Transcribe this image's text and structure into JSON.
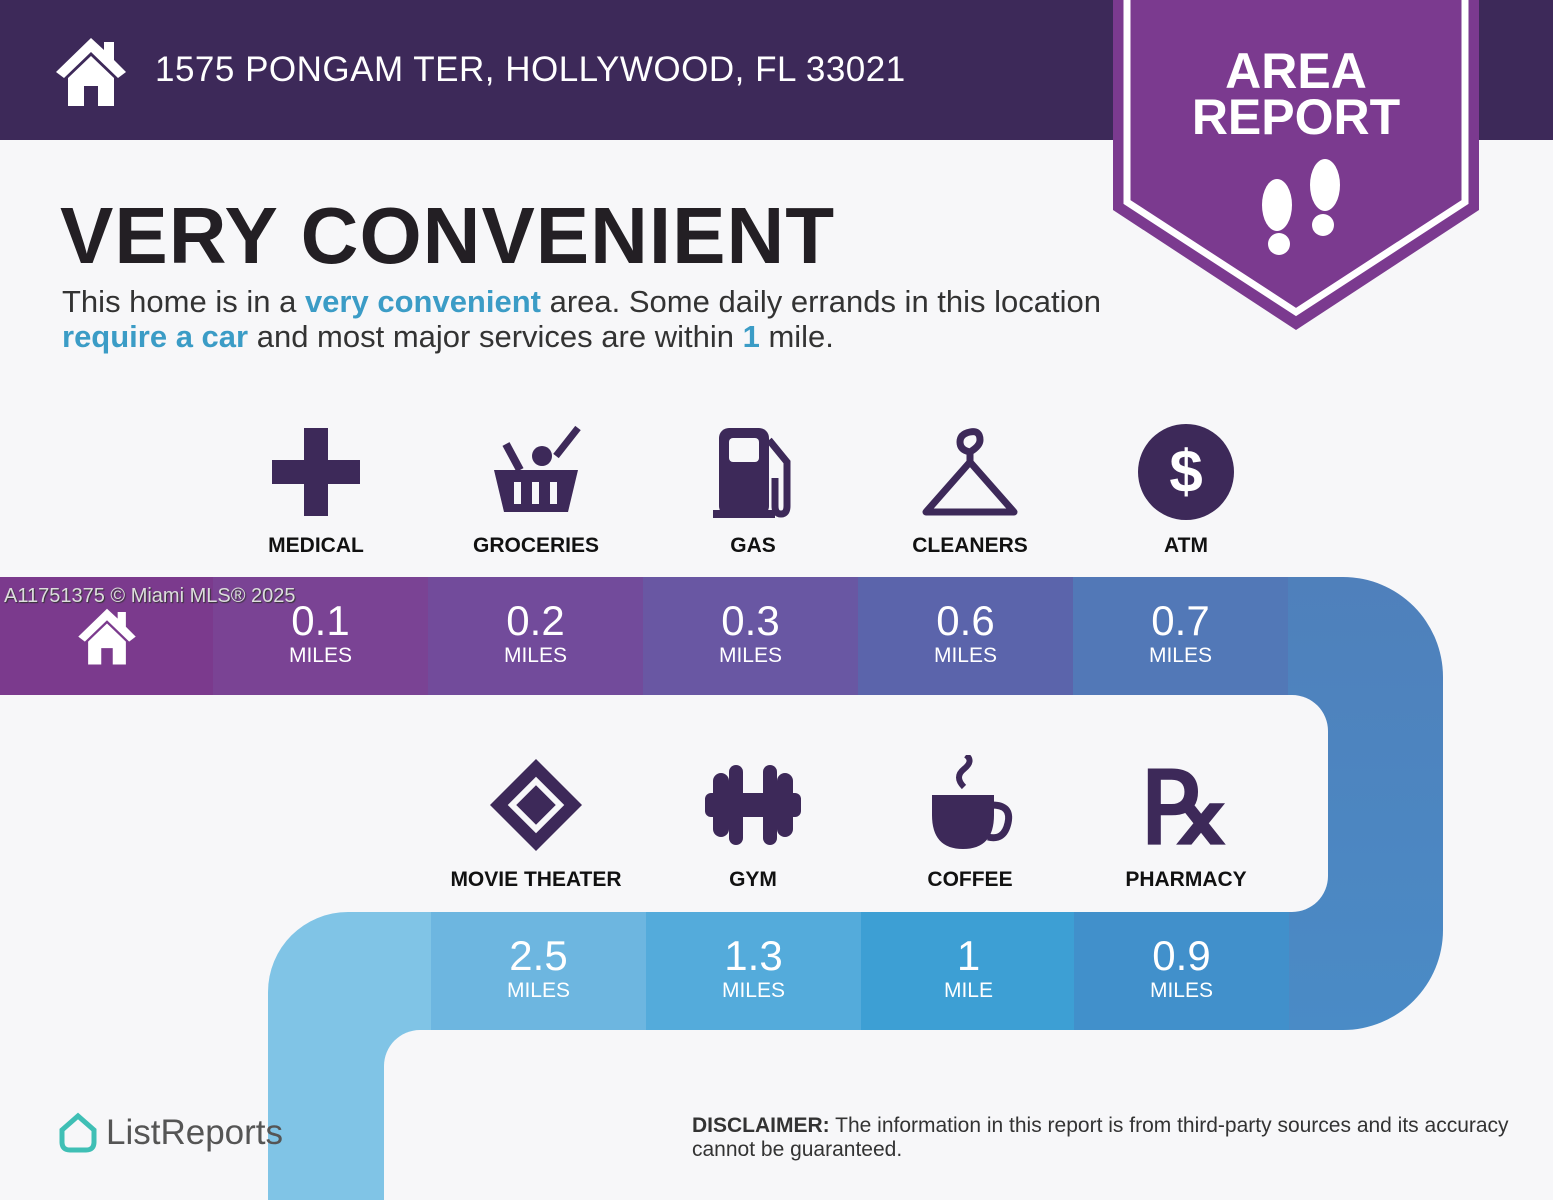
{
  "header": {
    "address": "1575 PONGAM TER, HOLLYWOOD, FL 33021",
    "badge_line1": "AREA",
    "badge_line2": "REPORT"
  },
  "title": "VERY CONVENIENT",
  "description": {
    "p1": "This home is in a ",
    "h1": "very convenient",
    "p2": " area. Some daily errands in this location ",
    "h2": "require a car",
    "p3": " and most major services are within ",
    "h3": "1",
    "p4": " mile."
  },
  "watermark": "A11751375 © Miami MLS® 2025",
  "amenities_top": [
    {
      "label": "MEDICAL",
      "value": "0.1",
      "unit": "MILES",
      "icon": "medical-cross-icon"
    },
    {
      "label": "GROCERIES",
      "value": "0.2",
      "unit": "MILES",
      "icon": "grocery-basket-icon"
    },
    {
      "label": "GAS",
      "value": "0.3",
      "unit": "MILES",
      "icon": "gas-pump-icon"
    },
    {
      "label": "CLEANERS",
      "value": "0.6",
      "unit": "MILES",
      "icon": "hanger-icon"
    },
    {
      "label": "ATM",
      "value": "0.7",
      "unit": "MILES",
      "icon": "dollar-icon"
    }
  ],
  "amenities_bottom": [
    {
      "label": "MOVIE THEATER",
      "value": "2.5",
      "unit": "MILES",
      "icon": "ticket-icon"
    },
    {
      "label": "GYM",
      "value": "1.3",
      "unit": "MILES",
      "icon": "dumbbell-icon"
    },
    {
      "label": "COFFEE",
      "value": "1",
      "unit": "MILE",
      "icon": "coffee-cup-icon"
    },
    {
      "label": "PHARMACY",
      "value": "0.9",
      "unit": "MILES",
      "icon": "rx-icon"
    }
  ],
  "footer": {
    "logo": "ListReports",
    "disclaimer_label": "DISCLAIMER:",
    "disclaimer_text": " The information in this report is from third-party sources and its accuracy cannot be guaranteed."
  },
  "colors": {
    "header": "#3d2959",
    "badge": "#7b3a8f",
    "icon": "#3d2959",
    "highlight": "#3b9cc6"
  }
}
